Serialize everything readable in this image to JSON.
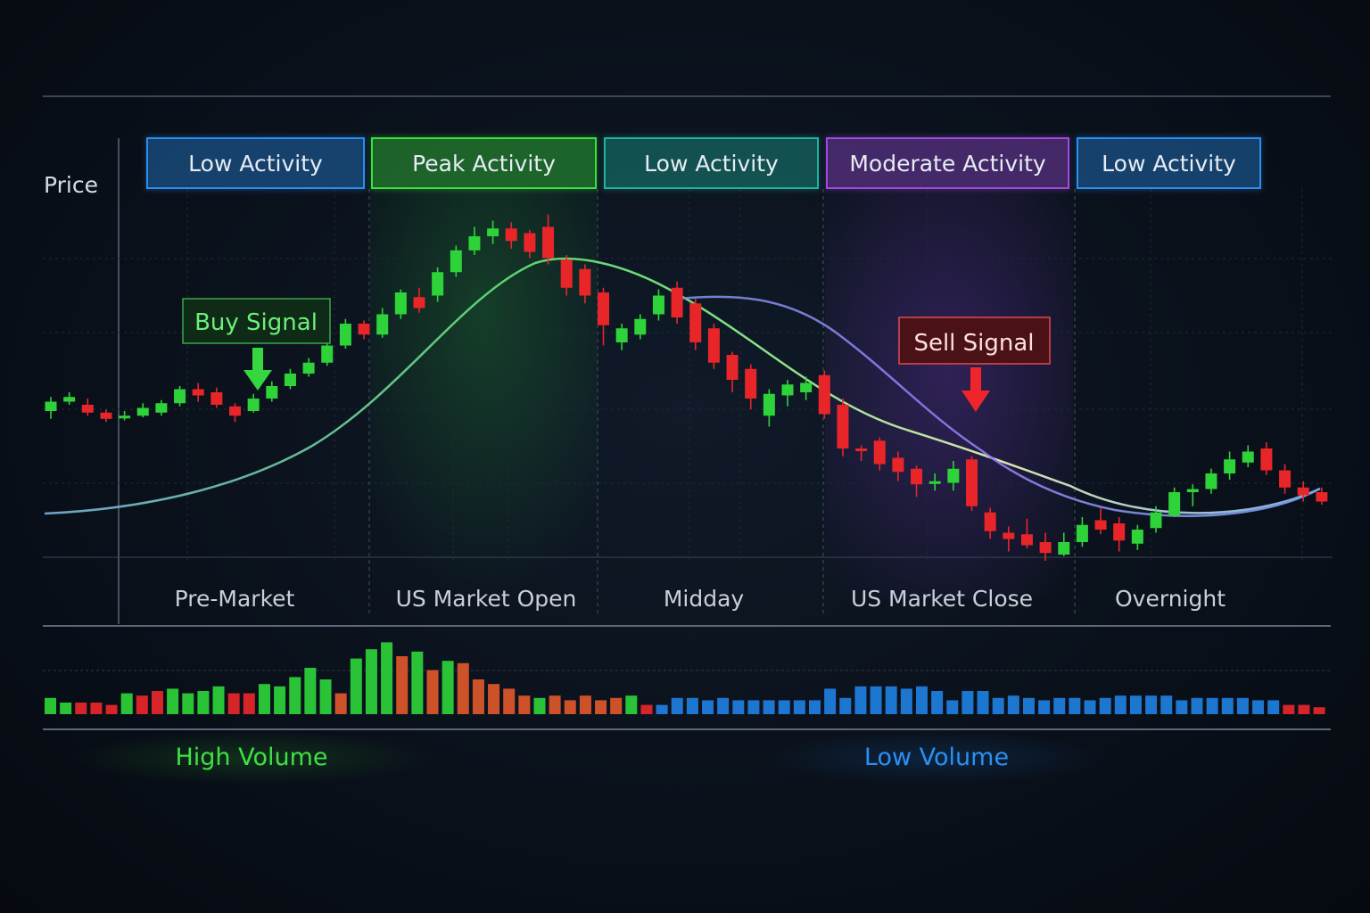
{
  "chart_data": {
    "type": "candlestick",
    "ylabel": "Price",
    "colors": {
      "up": "#2ed33a",
      "down": "#e8262a",
      "volume_low": "#1f7fe0",
      "accent_green": "#3be23f",
      "accent_blue": "#2a8ff0",
      "accent_purple": "#a04be0",
      "accent_teal": "#1fb3a0"
    },
    "sessions": [
      {
        "label": "Pre-Market",
        "activity": "Low Activity",
        "color": "#2a8ff0"
      },
      {
        "label": "US Market Open",
        "activity": "Peak Activity",
        "color": "#3be23f"
      },
      {
        "label": "Midday",
        "activity": "Low Activity",
        "color": "#1fb3a0"
      },
      {
        "label": "US Market Close",
        "activity": "Moderate Activity",
        "color": "#a04be0"
      },
      {
        "label": "Overnight",
        "activity": "Low Activity",
        "color": "#2a8ff0"
      }
    ],
    "annotations": {
      "buy": "Buy Signal",
      "sell": "Sell Signal",
      "high_volume": "High Volume",
      "low_volume": "Low Volume"
    },
    "candles": [
      [
        48,
        54,
        57,
        43
      ],
      [
        54,
        57,
        60,
        52
      ],
      [
        52,
        47,
        56,
        45
      ],
      [
        47,
        43,
        49,
        41
      ],
      [
        44,
        45,
        48,
        42
      ],
      [
        45,
        50,
        53,
        44
      ],
      [
        47,
        53,
        55,
        45
      ],
      [
        53,
        62,
        64,
        51
      ],
      [
        62,
        58,
        66,
        54
      ],
      [
        60,
        52,
        63,
        50
      ],
      [
        51,
        45,
        53,
        41
      ],
      [
        48,
        56,
        59,
        47
      ],
      [
        56,
        64,
        67,
        54
      ],
      [
        64,
        72,
        75,
        62
      ],
      [
        72,
        79,
        82,
        70
      ],
      [
        79,
        90,
        93,
        77
      ],
      [
        90,
        104,
        107,
        88
      ],
      [
        104,
        97,
        106,
        94
      ],
      [
        97,
        110,
        114,
        95
      ],
      [
        110,
        124,
        126,
        107
      ],
      [
        121,
        114,
        127,
        111
      ],
      [
        122,
        137,
        140,
        118
      ],
      [
        137,
        151,
        154,
        134
      ],
      [
        151,
        160,
        166,
        148
      ],
      [
        160,
        165,
        170,
        155
      ],
      [
        165,
        157,
        169,
        152
      ],
      [
        162,
        150,
        164,
        146
      ],
      [
        166,
        146,
        174,
        142
      ],
      [
        145,
        127,
        148,
        122
      ],
      [
        139,
        122,
        142,
        117
      ],
      [
        124,
        103,
        127,
        90
      ],
      [
        92,
        101,
        104,
        87
      ],
      [
        97,
        107,
        110,
        94
      ],
      [
        110,
        122,
        126,
        106
      ],
      [
        127,
        108,
        131,
        104
      ],
      [
        117,
        92,
        120,
        87
      ],
      [
        101,
        79,
        104,
        75
      ],
      [
        84,
        68,
        86,
        60
      ],
      [
        75,
        56,
        78,
        49
      ],
      [
        45,
        59,
        62,
        38
      ],
      [
        58,
        65,
        68,
        51
      ],
      [
        60,
        66,
        70,
        55
      ],
      [
        71,
        46,
        74,
        43
      ],
      [
        52,
        24,
        56,
        19
      ],
      [
        24,
        23,
        26,
        16
      ],
      [
        29,
        14,
        31,
        10
      ],
      [
        18,
        9,
        22,
        3
      ],
      [
        11,
        1,
        13,
        -7
      ],
      [
        2,
        3,
        8,
        -3
      ],
      [
        2,
        11,
        16,
        -3
      ],
      [
        17,
        -13,
        19,
        -16
      ],
      [
        -17,
        -29,
        -14,
        -34
      ],
      [
        -30,
        -34,
        -26,
        -42
      ],
      [
        -31,
        -38,
        -21,
        -40
      ],
      [
        -36,
        -43,
        -30,
        -48
      ],
      [
        -44,
        -36,
        -30,
        -45
      ],
      [
        -36,
        -25,
        -20,
        -39
      ],
      [
        -22,
        -28,
        -14,
        -31
      ],
      [
        -24,
        -35,
        -20,
        -42
      ],
      [
        -37,
        -28,
        -25,
        -41
      ],
      [
        -27,
        -17,
        -13,
        -30
      ],
      [
        -19,
        -4,
        -1,
        -20
      ],
      [
        -4,
        -2,
        1,
        -13
      ],
      [
        -2,
        8,
        11,
        -5
      ],
      [
        8,
        17,
        22,
        4
      ],
      [
        15,
        22,
        26,
        12
      ],
      [
        24,
        10,
        28,
        7
      ],
      [
        10,
        -1,
        14,
        -5
      ],
      [
        -1,
        -6,
        3,
        -10
      ],
      [
        -4,
        -10,
        -1,
        -12
      ]
    ],
    "volume": [
      {
        "v": 7,
        "c": "up"
      },
      {
        "v": 5,
        "c": "up"
      },
      {
        "v": 5,
        "c": "down"
      },
      {
        "v": 5,
        "c": "down"
      },
      {
        "v": 4,
        "c": "down"
      },
      {
        "v": 9,
        "c": "up"
      },
      {
        "v": 8,
        "c": "down"
      },
      {
        "v": 10,
        "c": "down"
      },
      {
        "v": 11,
        "c": "up"
      },
      {
        "v": 9,
        "c": "up"
      },
      {
        "v": 10,
        "c": "up"
      },
      {
        "v": 12,
        "c": "up"
      },
      {
        "v": 9,
        "c": "down"
      },
      {
        "v": 9,
        "c": "down"
      },
      {
        "v": 13,
        "c": "up"
      },
      {
        "v": 12,
        "c": "up"
      },
      {
        "v": 16,
        "c": "up"
      },
      {
        "v": 20,
        "c": "up"
      },
      {
        "v": 15,
        "c": "up"
      },
      {
        "v": 9,
        "c": "down"
      },
      {
        "v": 24,
        "c": "up"
      },
      {
        "v": 28,
        "c": "up"
      },
      {
        "v": 31,
        "c": "up"
      },
      {
        "v": 25,
        "c": "down"
      },
      {
        "v": 27,
        "c": "up"
      },
      {
        "v": 19,
        "c": "down"
      },
      {
        "v": 23,
        "c": "up"
      },
      {
        "v": 22,
        "c": "down"
      },
      {
        "v": 15,
        "c": "down"
      },
      {
        "v": 13,
        "c": "down"
      },
      {
        "v": 11,
        "c": "down"
      },
      {
        "v": 8,
        "c": "down"
      },
      {
        "v": 7,
        "c": "up"
      },
      {
        "v": 8,
        "c": "down"
      },
      {
        "v": 6,
        "c": "down"
      },
      {
        "v": 8,
        "c": "down"
      },
      {
        "v": 6,
        "c": "down"
      },
      {
        "v": 7,
        "c": "down"
      },
      {
        "v": 8,
        "c": "up"
      },
      {
        "v": 4,
        "c": "down"
      },
      {
        "v": 4,
        "c": "low"
      },
      {
        "v": 7,
        "c": "low"
      },
      {
        "v": 7,
        "c": "low"
      },
      {
        "v": 6,
        "c": "low"
      },
      {
        "v": 7,
        "c": "low"
      },
      {
        "v": 6,
        "c": "low"
      },
      {
        "v": 6,
        "c": "low"
      },
      {
        "v": 6,
        "c": "low"
      },
      {
        "v": 6,
        "c": "low"
      },
      {
        "v": 6,
        "c": "low"
      },
      {
        "v": 6,
        "c": "low"
      },
      {
        "v": 11,
        "c": "low"
      },
      {
        "v": 7,
        "c": "low"
      },
      {
        "v": 12,
        "c": "low"
      },
      {
        "v": 12,
        "c": "low"
      },
      {
        "v": 12,
        "c": "low"
      },
      {
        "v": 11,
        "c": "low"
      },
      {
        "v": 12,
        "c": "low"
      },
      {
        "v": 10,
        "c": "low"
      },
      {
        "v": 6,
        "c": "low"
      },
      {
        "v": 10,
        "c": "low"
      },
      {
        "v": 10,
        "c": "low"
      },
      {
        "v": 7,
        "c": "low"
      },
      {
        "v": 8,
        "c": "low"
      },
      {
        "v": 7,
        "c": "low"
      },
      {
        "v": 6,
        "c": "low"
      },
      {
        "v": 7,
        "c": "low"
      },
      {
        "v": 7,
        "c": "low"
      },
      {
        "v": 6,
        "c": "low"
      },
      {
        "v": 7,
        "c": "low"
      },
      {
        "v": 8,
        "c": "low"
      },
      {
        "v": 8,
        "c": "low"
      },
      {
        "v": 8,
        "c": "low"
      },
      {
        "v": 8,
        "c": "low"
      },
      {
        "v": 6,
        "c": "low"
      },
      {
        "v": 7,
        "c": "low"
      },
      {
        "v": 7,
        "c": "low"
      },
      {
        "v": 7,
        "c": "low"
      },
      {
        "v": 7,
        "c": "low"
      },
      {
        "v": 6,
        "c": "low"
      },
      {
        "v": 6,
        "c": "low"
      },
      {
        "v": 4,
        "c": "down"
      },
      {
        "v": 4,
        "c": "down"
      },
      {
        "v": 3,
        "c": "down"
      }
    ],
    "grid": true
  }
}
